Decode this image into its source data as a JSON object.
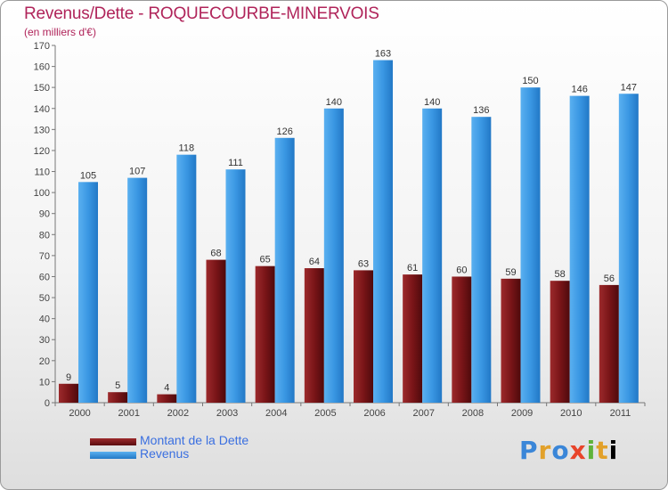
{
  "header": {
    "title": "Revenus/Dette - ROQUECOURBE-MINERVOIS",
    "subtitle": "(en milliers d'€)"
  },
  "legend": {
    "debt_label": "Montant de la Dette",
    "revenue_label": "Revenus"
  },
  "brand": {
    "logo_text": "Proxiti"
  },
  "colors": {
    "debt": "#7a1518",
    "revenue": "#3a97e3",
    "title": "#b0245a",
    "legend_text": "#3a6fe0"
  },
  "chart_data": {
    "type": "bar",
    "title": "Revenus/Dette - ROQUECOURBE-MINERVOIS",
    "subtitle": "(en milliers d'€)",
    "categories": [
      "2000",
      "2001",
      "2002",
      "2003",
      "2004",
      "2005",
      "2006",
      "2007",
      "2008",
      "2009",
      "2010",
      "2011"
    ],
    "series": [
      {
        "name": "Montant de la Dette",
        "values": [
          9,
          5,
          4,
          68,
          65,
          64,
          63,
          61,
          60,
          59,
          58,
          56
        ]
      },
      {
        "name": "Revenus",
        "values": [
          105,
          107,
          118,
          111,
          126,
          140,
          163,
          140,
          136,
          150,
          146,
          147
        ]
      }
    ],
    "ylim": [
      0,
      170
    ],
    "ytick_step": 10,
    "grid": false,
    "legend_position": "bottom-left",
    "data_labels": true
  }
}
